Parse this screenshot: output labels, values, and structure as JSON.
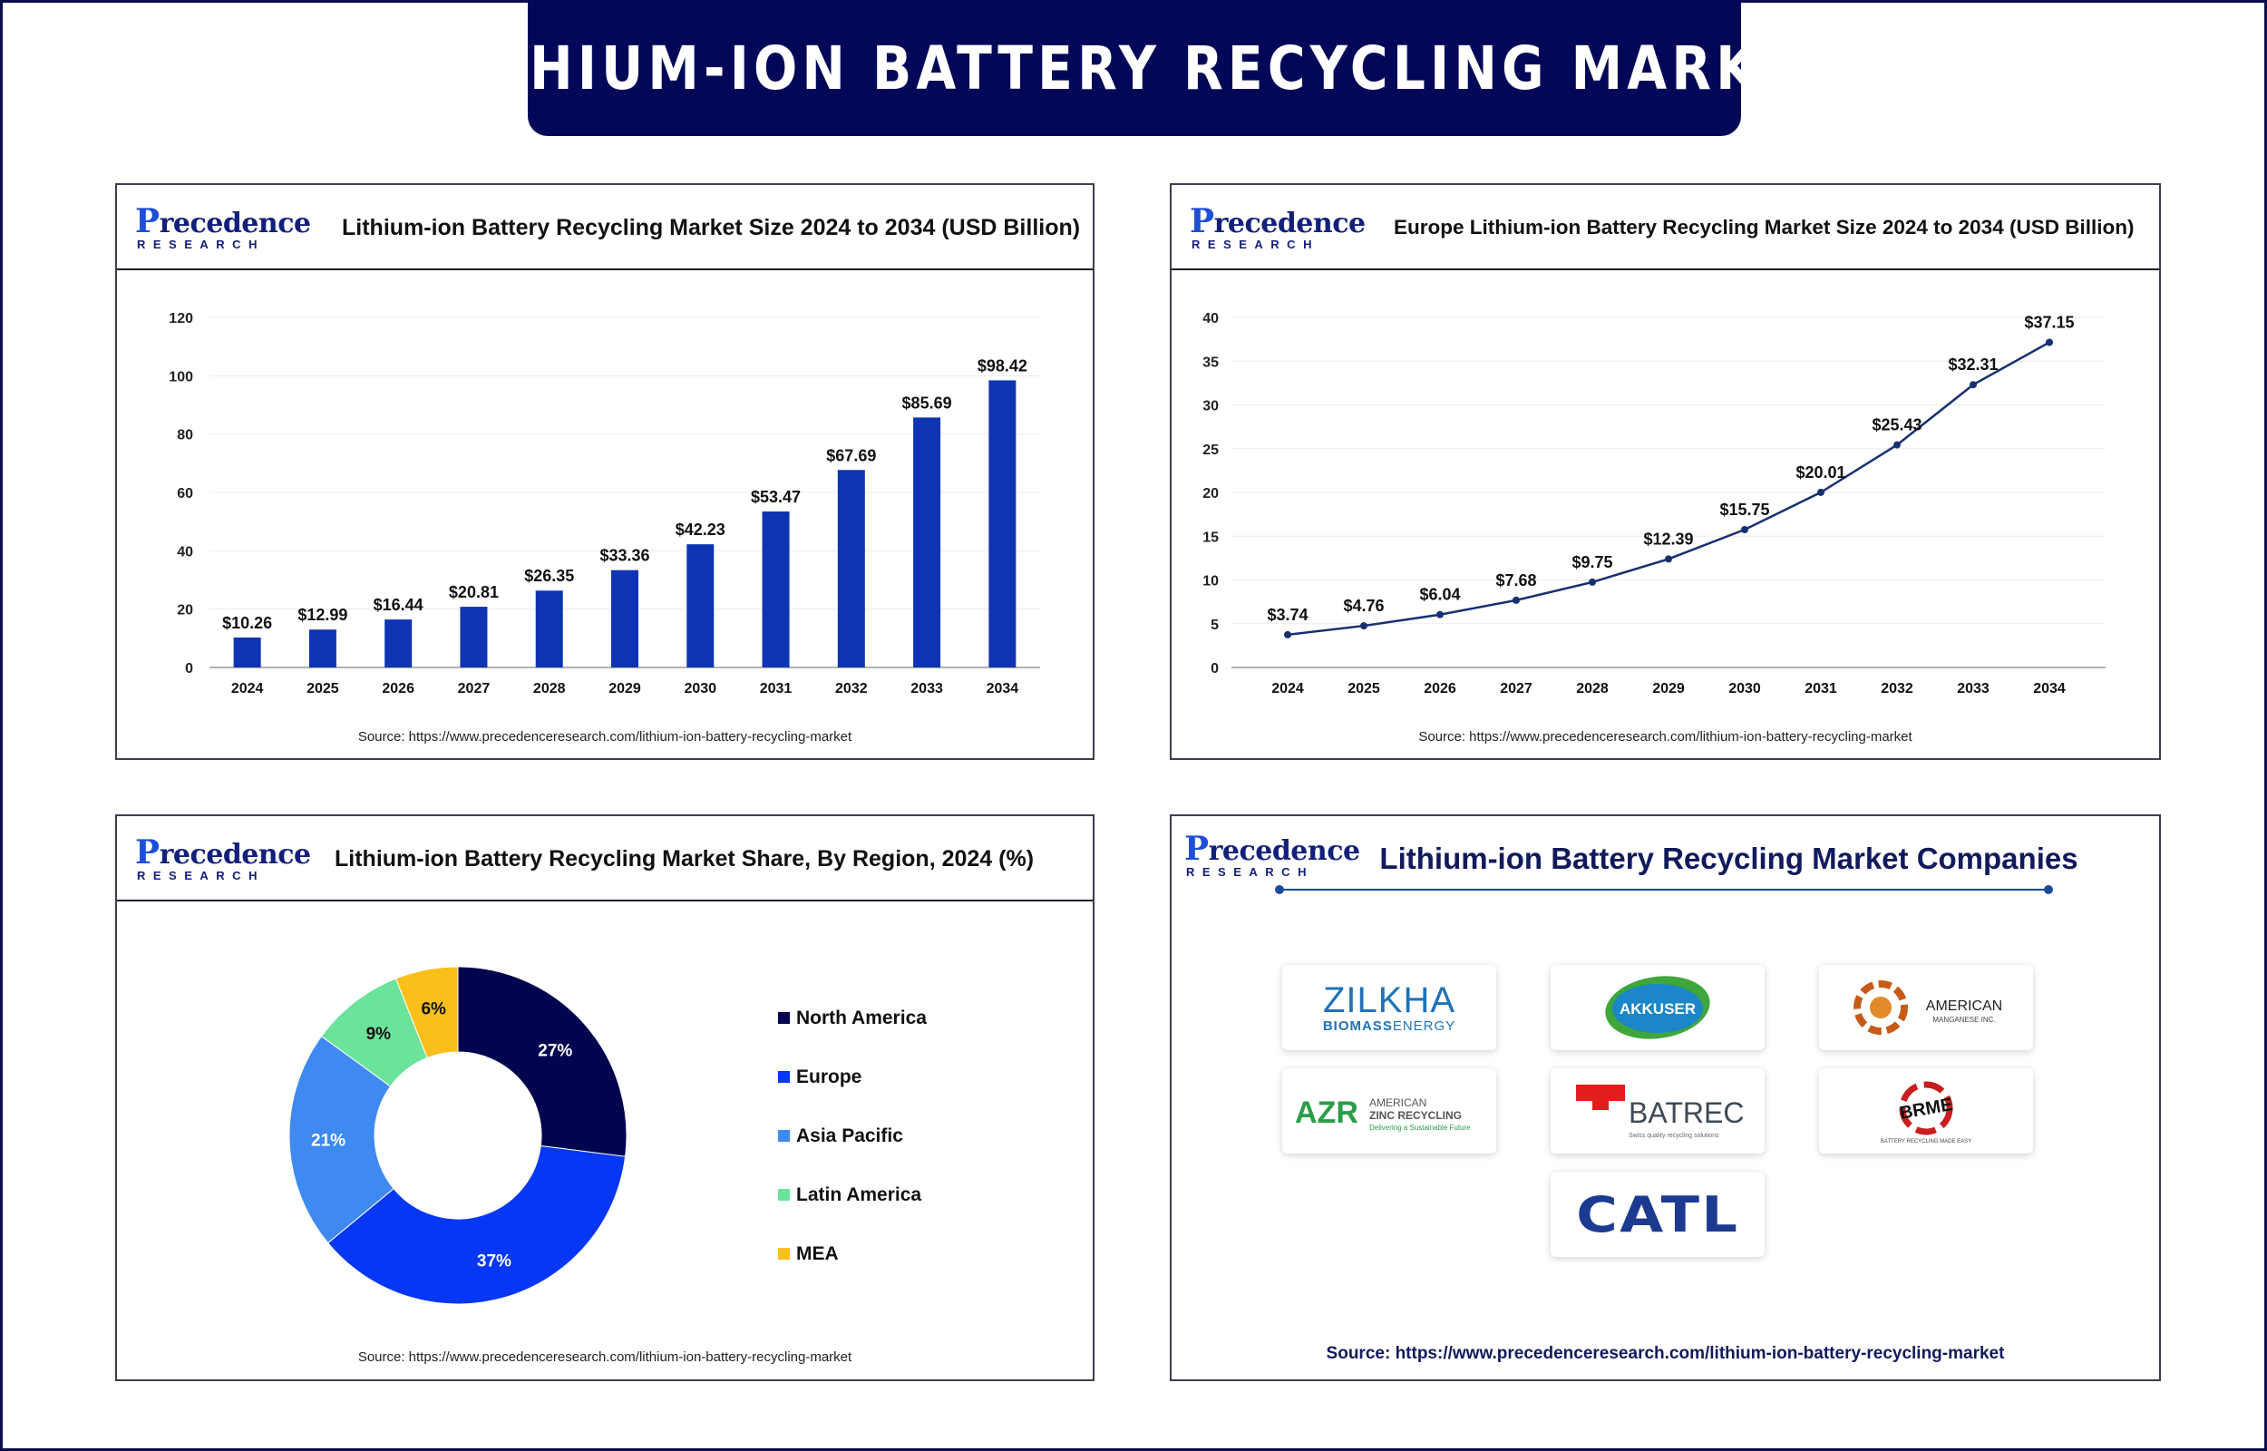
{
  "header": {
    "title": "LITHIUM-ION BATTERY RECYCLING MARKET"
  },
  "brand": {
    "logo_top": "recedence",
    "logo_p": "P",
    "logo_bottom": "RESEARCH"
  },
  "source_text": "Source: https://www.precedenceresearch.com/lithium-ion-battery-recycling-market",
  "colors": {
    "banner": "#020857",
    "bar": "#0f34b3",
    "line": "#17306f",
    "rule": "#1d4b9c"
  },
  "chart_data": [
    {
      "type": "bar",
      "title": "Lithium-ion Battery Recycling Market Size 2024 to 2034 (USD Billion)",
      "categories": [
        "2024",
        "2025",
        "2026",
        "2027",
        "2028",
        "2029",
        "2030",
        "2031",
        "2032",
        "2033",
        "2034"
      ],
      "values": [
        10.26,
        12.99,
        16.44,
        20.81,
        26.35,
        33.36,
        42.23,
        53.47,
        67.69,
        85.69,
        98.42
      ],
      "data_labels": [
        "$10.26",
        "$12.99",
        "$16.44",
        "$20.81",
        "$26.35",
        "$33.36",
        "$42.23",
        "$53.47",
        "$67.69",
        "$85.69",
        "$98.42"
      ],
      "ylim": [
        0,
        120
      ],
      "yticks": [
        "0",
        "20",
        "40",
        "60",
        "80",
        "100",
        "120"
      ],
      "grid": true
    },
    {
      "type": "line",
      "title": "Europe Lithium-ion Battery Recycling Market Size 2024 to 2034 (USD Billion)",
      "categories": [
        "2024",
        "2025",
        "2026",
        "2027",
        "2028",
        "2029",
        "2030",
        "2031",
        "2032",
        "2033",
        "2034"
      ],
      "values": [
        3.74,
        4.76,
        6.04,
        7.68,
        9.75,
        12.39,
        15.75,
        20.01,
        25.43,
        32.31,
        37.15
      ],
      "data_labels": [
        "$3.74",
        "$4.76",
        "$6.04",
        "$7.68",
        "$9.75",
        "$12.39",
        "$15.75",
        "$20.01",
        "$25.43",
        "$32.31",
        "$37.15"
      ],
      "ylim": [
        0,
        40
      ],
      "yticks": [
        "0",
        "5",
        "10",
        "15",
        "20",
        "25",
        "30",
        "35",
        "40"
      ],
      "grid": true
    },
    {
      "type": "pie",
      "title": "Lithium-ion Battery Recycling Market Share, By Region, 2024 (%)",
      "labels": [
        "North America",
        "Europe",
        "Asia Pacific",
        "Latin America",
        "MEA"
      ],
      "values": [
        27,
        37,
        21,
        9,
        6
      ],
      "value_labels": [
        "27%",
        "37%",
        "21%",
        "9%",
        "6%"
      ],
      "colors": [
        "#02044f",
        "#0537f5",
        "#3f8af0",
        "#6be39a",
        "#fbbf1b"
      ],
      "donut": true,
      "legend": "right"
    }
  ],
  "companies": {
    "title": "Lithium-ion Battery Recycling Market Companies",
    "zilkha": {
      "name": "ZILKHA",
      "sub_a": "BIOMASS",
      "sub_b": "ENERGY"
    },
    "akkuser": {
      "name": "AKKUSER"
    },
    "american_manganese": {
      "name": "AMERICAN",
      "sub": "MANGANESE INC."
    },
    "azr": {
      "mark": "AZR",
      "line1": "AMERICAN",
      "line2": "ZINC RECYCLING",
      "tagline": "Delivering a Sustainable Future"
    },
    "batrec": {
      "name": "BATREC",
      "tagline": "Swiss quality recycling solutions"
    },
    "brme": {
      "mark": "BRME",
      "tagline": "BATTERY RECYCLING MADE EASY"
    },
    "catl": {
      "name": "CATL"
    }
  }
}
